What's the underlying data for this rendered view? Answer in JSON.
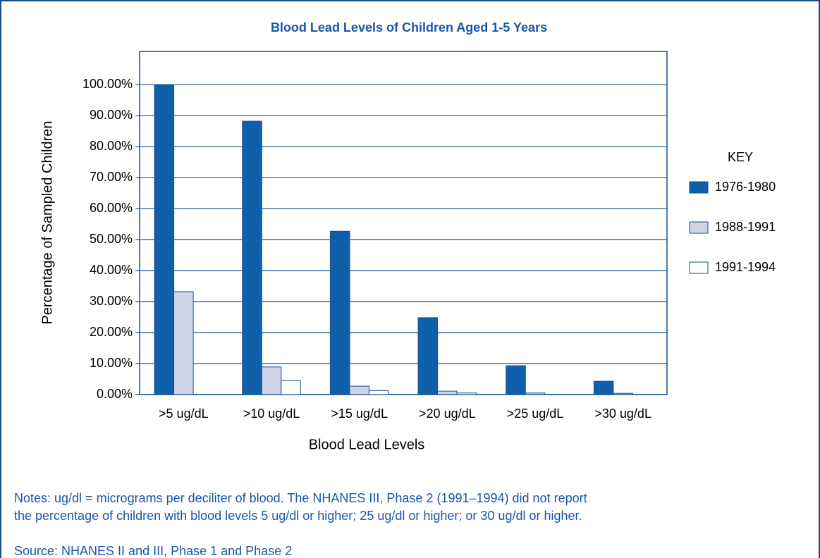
{
  "chart_data": {
    "type": "bar",
    "title": "Blood Lead Levels of Children Aged 1-5 Years",
    "x_label": "Blood Lead Levels",
    "y_label": "Percentage of Sampled Children",
    "categories": [
      ">5 ug/dL",
      ">10 ug/dL",
      ">15 ug/dL",
      ">20 ug/dL",
      ">25 ug/dL",
      ">30 ug/dL"
    ],
    "series": [
      {
        "name": "1976-1980",
        "color": "#0f5faa",
        "values": [
          100,
          88.2,
          52.7,
          24.8,
          9.3,
          4.3
        ]
      },
      {
        "name": "1988-1991",
        "color": "#d0d4e8",
        "values": [
          33.2,
          8.9,
          2.7,
          1.1,
          0.5,
          0.4
        ]
      },
      {
        "name": "1991-1994",
        "color": "#ffffff",
        "values": [
          null,
          4.5,
          1.3,
          0.5,
          null,
          null
        ]
      }
    ],
    "ylim": [
      0,
      110.7
    ],
    "yticks": [
      {
        "value": 0,
        "label": "0.00%"
      },
      {
        "value": 10,
        "label": "10.00%"
      },
      {
        "value": 20,
        "label": "20.00%"
      },
      {
        "value": 30,
        "label": "30.00%"
      },
      {
        "value": 40,
        "label": "40.00%"
      },
      {
        "value": 50,
        "label": "50.00%"
      },
      {
        "value": 60,
        "label": "60.00%"
      },
      {
        "value": 70,
        "label": "70.00%"
      },
      {
        "value": 80,
        "label": "80.00%"
      },
      {
        "value": 90,
        "label": "90.00%"
      },
      {
        "value": 100,
        "label": "100.00%"
      }
    ],
    "grid": true,
    "legend_title": "KEY",
    "legend": "right",
    "notes": [
      "Notes: ug/dl = micrograms per deciliter of blood. The NHANES III, Phase 2 (1991–1994) did not report",
      "the percentage of children with blood levels 5 ug/dl or higher; 25 ug/dl or higher; or 30 ug/dl or higher."
    ],
    "source": "Source:  NHANES II and III, Phase 1 and Phase 2"
  }
}
